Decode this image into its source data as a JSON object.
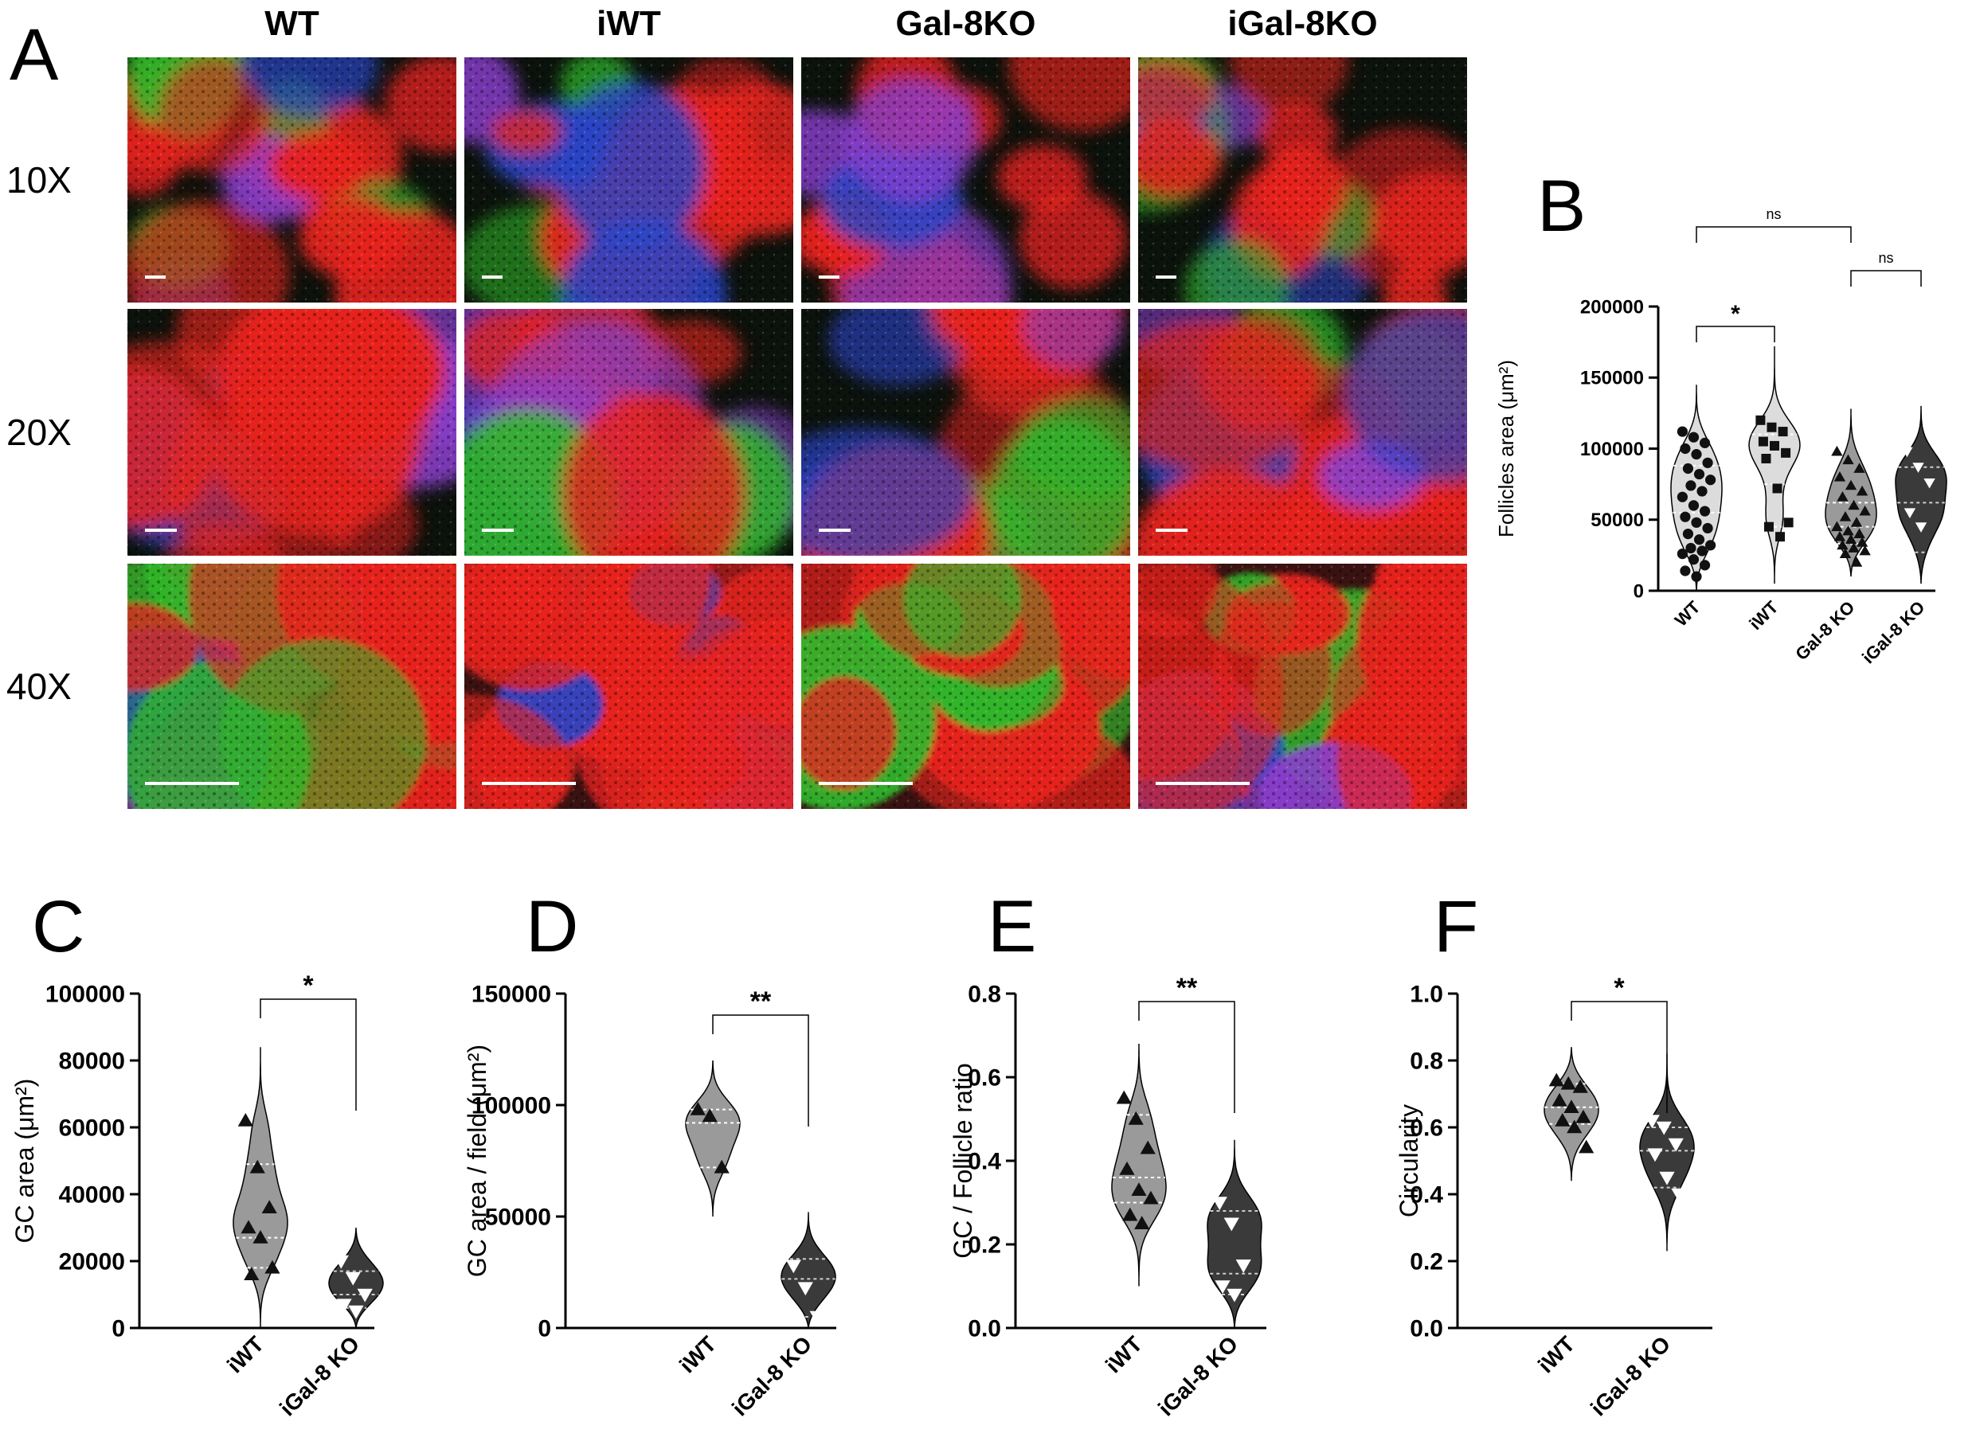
{
  "panelA": {
    "letter": "A",
    "columns": [
      "WT",
      "iWT",
      "Gal-8KO",
      "iGal-8KO"
    ],
    "rows": [
      "10X",
      "20X",
      "40X"
    ]
  },
  "panels": {
    "B": "B",
    "C": "C",
    "D": "D",
    "E": "E",
    "F": "F"
  },
  "colors": {
    "violin_light": "#dcdcdc",
    "violin_mid": "#9a9a9a",
    "violin_dark": "#3a3a3a",
    "stain_red": "#e8231e",
    "stain_green": "#2fb82a",
    "stain_blue": "#2a45c8",
    "stain_purple": "#8a3fcf"
  },
  "chart_data": [
    {
      "id": "B",
      "type": "violin",
      "ylabel": "Follicles area (μm²)",
      "categories": [
        "WT",
        "iWT",
        "Gal-8 KO",
        "iGal-8 KO"
      ],
      "yticks": [
        0,
        50000,
        100000,
        150000,
        200000
      ],
      "yticklabels": [
        "0",
        "50000",
        "100000",
        "150000",
        "200000"
      ],
      "ylim": [
        0,
        200000
      ],
      "series": [
        {
          "marker": "circle",
          "fill": "light",
          "values": [
            112000,
            108000,
            104000,
            100000,
            96000,
            90000,
            86000,
            82000,
            78000,
            74000,
            70000,
            66000,
            60000,
            56000,
            52000,
            48000,
            44000,
            40000,
            36000,
            32000,
            30000,
            28000,
            26000,
            22000,
            18000,
            14000,
            10000
          ],
          "quartiles": [
            30000,
            55000,
            88000
          ],
          "vmin": 0,
          "vmax": 145000
        },
        {
          "marker": "square",
          "fill": "light",
          "values": [
            120000,
            115000,
            112000,
            105000,
            102000,
            97000,
            93000,
            72000,
            48000,
            45000,
            38000
          ],
          "quartiles": [
            45000,
            75000,
            110000
          ],
          "vmin": 5000,
          "vmax": 172000
        },
        {
          "marker": "triangle-up",
          "fill": "mid",
          "values": [
            98000,
            92000,
            86000,
            80000,
            74000,
            70000,
            66000,
            60000,
            56000,
            52000,
            48000,
            45000,
            42000,
            40000,
            38000,
            36000,
            34000,
            32000,
            30000,
            28000,
            26000,
            20000
          ],
          "quartiles": [
            33000,
            45000,
            62000
          ],
          "vmin": 10000,
          "vmax": 128000
        },
        {
          "marker": "triangle-down",
          "fill": "dark",
          "values": [
            98000,
            87000,
            76000,
            55000,
            45000,
            22000
          ],
          "quartiles": [
            27000,
            62000,
            87000
          ],
          "vmin": 5000,
          "vmax": 130000
        }
      ],
      "comparisons": [
        {
          "from": 0,
          "to": 1,
          "label": "*"
        },
        {
          "from": 2,
          "to": 3,
          "label": "ns"
        },
        {
          "from": 0,
          "to": 2,
          "label": "ns"
        },
        {
          "from": 1,
          "to": 3,
          "label": "ns"
        }
      ]
    },
    {
      "id": "C",
      "type": "violin",
      "ylabel": "GC area (μm²)",
      "categories": [
        "iWT",
        "iGal-8 KO"
      ],
      "yticks": [
        0,
        20000,
        40000,
        60000,
        80000,
        100000
      ],
      "yticklabels": [
        "0",
        "20000",
        "40000",
        "60000",
        "80000",
        "100000"
      ],
      "ylim": [
        0,
        100000
      ],
      "series": [
        {
          "marker": "triangle-up",
          "fill": "mid",
          "values": [
            62000,
            48000,
            36000,
            30000,
            27000,
            18000,
            16000
          ],
          "quartiles": [
            18000,
            27000,
            49000
          ],
          "vmin": 0,
          "vmax": 84000
        },
        {
          "marker": "triangle-down",
          "fill": "dark",
          "values": [
            20000,
            15000,
            10000,
            7000,
            5000
          ],
          "quartiles": [
            6000,
            10000,
            17000
          ],
          "vmin": 0,
          "vmax": 30000
        }
      ],
      "comparisons": [
        {
          "from": 0,
          "to": 1,
          "label": "*"
        }
      ]
    },
    {
      "id": "D",
      "type": "violin",
      "ylabel": "GC area / field (μm²)",
      "categories": [
        "iWT",
        "iGal-8 KO"
      ],
      "yticks": [
        0,
        50000,
        100000,
        150000
      ],
      "yticklabels": [
        "0",
        "50000",
        "100000",
        "150000"
      ],
      "ylim": [
        0,
        150000
      ],
      "series": [
        {
          "marker": "triangle-up",
          "fill": "mid",
          "values": [
            98000,
            95000,
            72000
          ],
          "quartiles": [
            72000,
            92000,
            98000
          ],
          "vmin": 50000,
          "vmax": 120000
        },
        {
          "marker": "triangle-down",
          "fill": "dark",
          "values": [
            28000,
            18000,
            5000
          ],
          "quartiles": [
            5000,
            22000,
            31000
          ],
          "vmin": 0,
          "vmax": 52000
        }
      ],
      "comparisons": [
        {
          "from": 0,
          "to": 1,
          "label": "**"
        }
      ]
    },
    {
      "id": "E",
      "type": "violin",
      "ylabel": "GC / Follicle ratio",
      "categories": [
        "iWT",
        "iGal-8 KO"
      ],
      "yticks": [
        0,
        0.2,
        0.4,
        0.6,
        0.8
      ],
      "yticklabels": [
        "0.0",
        "0.2",
        "0.4",
        "0.6",
        "0.8"
      ],
      "ylim": [
        0,
        0.8
      ],
      "series": [
        {
          "marker": "triangle-up",
          "fill": "mid",
          "values": [
            0.55,
            0.5,
            0.43,
            0.38,
            0.33,
            0.31,
            0.27,
            0.25
          ],
          "quartiles": [
            0.3,
            0.36,
            0.51
          ],
          "vmin": 0.1,
          "vmax": 0.68
        },
        {
          "marker": "triangle-down",
          "fill": "dark",
          "values": [
            0.3,
            0.25,
            0.15,
            0.1,
            0.08
          ],
          "quartiles": [
            0.08,
            0.13,
            0.28
          ],
          "vmin": 0.0,
          "vmax": 0.45
        }
      ],
      "comparisons": [
        {
          "from": 0,
          "to": 1,
          "label": "**"
        }
      ]
    },
    {
      "id": "F",
      "type": "violin",
      "ylabel": "Circularity",
      "categories": [
        "iWT",
        "iGal-8 KO"
      ],
      "yticks": [
        0,
        0.2,
        0.4,
        0.6,
        0.8,
        1.0
      ],
      "yticklabels": [
        "0.0",
        "0.2",
        "0.4",
        "0.6",
        "0.8",
        "1.0"
      ],
      "ylim": [
        0,
        1.0
      ],
      "series": [
        {
          "marker": "triangle-up",
          "fill": "mid",
          "values": [
            0.74,
            0.73,
            0.72,
            0.68,
            0.66,
            0.63,
            0.62,
            0.6,
            0.54
          ],
          "quartiles": [
            0.61,
            0.66,
            0.73
          ],
          "vmin": 0.44,
          "vmax": 0.84
        },
        {
          "marker": "triangle-down",
          "fill": "dark",
          "values": [
            0.62,
            0.6,
            0.55,
            0.52,
            0.45,
            0.4
          ],
          "quartiles": [
            0.42,
            0.53,
            0.6
          ],
          "vmin": 0.23,
          "vmax": 0.82
        }
      ],
      "comparisons": [
        {
          "from": 0,
          "to": 1,
          "label": "*"
        }
      ]
    }
  ]
}
